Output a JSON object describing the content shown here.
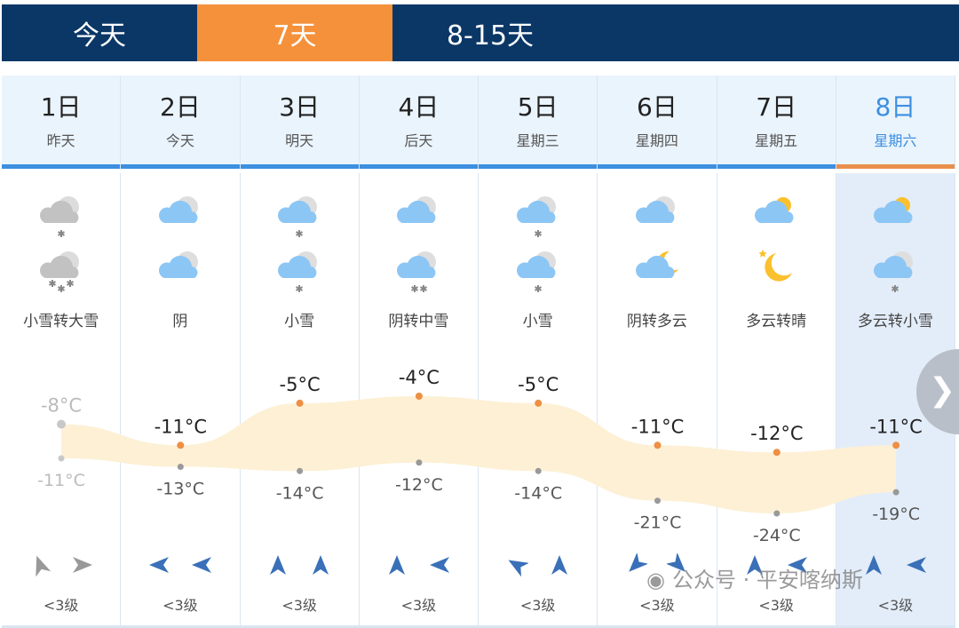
{
  "tabs": [
    {
      "label": "今天"
    },
    {
      "label": "7天",
      "active": true
    },
    {
      "label": "8-15天"
    }
  ],
  "days": [
    {
      "date": "1日",
      "weekday": "昨天",
      "icons": [
        "cloud-gray-snow1",
        "cloud-gray-snow3"
      ],
      "desc": "小雪转大雪",
      "high": -8,
      "low": -11,
      "high_label": "-8°C",
      "low_label": "-11°C",
      "wind_dirs": [
        -20,
        90
      ],
      "wind_level": "<3级",
      "past": true
    },
    {
      "date": "2日",
      "weekday": "今天",
      "icons": [
        "cloud-blue",
        "cloud-blue"
      ],
      "desc": "阴",
      "high": -11,
      "low": -13,
      "high_label": "-11°C",
      "low_label": "-13°C",
      "wind_dirs": [
        -90,
        -90
      ],
      "wind_level": "<3级"
    },
    {
      "date": "3日",
      "weekday": "明天",
      "icons": [
        "cloud-blue-snow1",
        "cloud-blue-snow1"
      ],
      "desc": "小雪",
      "high": -5,
      "low": -14,
      "high_label": "-5°C",
      "low_label": "-14°C",
      "wind_dirs": [
        0,
        0
      ],
      "wind_level": "<3级"
    },
    {
      "date": "4日",
      "weekday": "后天",
      "icons": [
        "cloud-blue",
        "cloud-blue-snow2"
      ],
      "desc": "阴转中雪",
      "high": -4,
      "low": -12,
      "high_label": "-4°C",
      "low_label": "-12°C",
      "wind_dirs": [
        0,
        -90
      ],
      "wind_level": "<3级"
    },
    {
      "date": "5日",
      "weekday": "星期三",
      "icons": [
        "cloud-blue-snow1",
        "cloud-blue-snow1"
      ],
      "desc": "小雪",
      "high": -5,
      "low": -14,
      "high_label": "-5°C",
      "low_label": "-14°C",
      "wind_dirs": [
        -60,
        0
      ],
      "wind_level": "<3级"
    },
    {
      "date": "6日",
      "weekday": "星期四",
      "icons": [
        "cloud-blue",
        "moon-cloud"
      ],
      "desc": "阴转多云",
      "high": -11,
      "low": -21,
      "high_label": "-11°C",
      "low_label": "-21°C",
      "wind_dirs": [
        -135,
        135
      ],
      "wind_level": "<3级"
    },
    {
      "date": "7日",
      "weekday": "星期五",
      "icons": [
        "sun-cloud",
        "moon"
      ],
      "desc": "多云转晴",
      "high": -12,
      "low": -24,
      "high_label": "-12°C",
      "low_label": "-24°C",
      "wind_dirs": [
        0,
        -90
      ],
      "wind_level": "<3级"
    },
    {
      "date": "8日",
      "weekday": "星期六",
      "icons": [
        "sun-cloud",
        "cloud-blue-snow1"
      ],
      "desc": "多云转小雪",
      "high": -11,
      "low": -19,
      "high_label": "-11°C",
      "low_label": "-19°C",
      "wind_dirs": [
        0,
        -90
      ],
      "wind_level": "<3级",
      "selected": true
    }
  ],
  "watermark": "公众号 · 平安喀纳斯",
  "colors": {
    "nav": "#0b3767",
    "active": "#f5913b",
    "accent": "#3d8fe0",
    "band": "#fdf0d5",
    "point": "#ee8f43"
  }
}
